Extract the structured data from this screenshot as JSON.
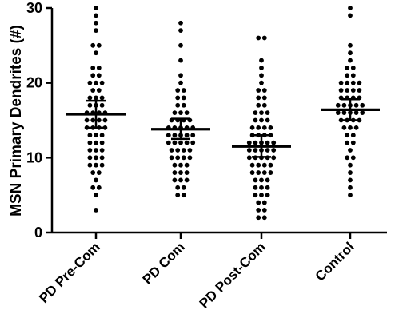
{
  "chart_data": {
    "type": "scatter",
    "ylabel": "MSN Primary Dendrites (#)",
    "xlabel": "",
    "ylim": [
      0,
      30
    ],
    "yticks": [
      0,
      10,
      20,
      30
    ],
    "grid": false,
    "categories": [
      "PD Pre-Com",
      "PD Com",
      "PD Post-Com",
      "Control"
    ],
    "groups": [
      {
        "category": "PD Pre-Com",
        "mean": 15.8,
        "error_low": 14.0,
        "error_high": 17.6,
        "values": [
          30,
          29,
          28,
          27,
          25,
          25,
          24,
          22,
          22,
          21,
          21,
          20,
          20,
          20,
          19,
          19,
          18,
          18,
          18,
          17,
          17,
          17,
          16,
          16,
          16,
          16,
          15,
          15,
          15,
          15,
          14,
          14,
          14,
          14,
          13,
          13,
          13,
          12,
          12,
          12,
          11,
          11,
          11,
          10,
          10,
          10,
          9,
          9,
          9,
          8,
          8,
          7,
          6,
          6,
          5,
          3
        ]
      },
      {
        "category": "PD Com",
        "mean": 13.8,
        "error_low": 12.5,
        "error_high": 15.2,
        "values": [
          28,
          27,
          25,
          23,
          21,
          20,
          19,
          19,
          18,
          18,
          17,
          17,
          16,
          16,
          16,
          15,
          15,
          15,
          15,
          14,
          14,
          14,
          14,
          14,
          13,
          13,
          13,
          13,
          13,
          12,
          12,
          12,
          12,
          12,
          11,
          11,
          11,
          11,
          10,
          10,
          10,
          10,
          9,
          9,
          9,
          8,
          8,
          8,
          7,
          7,
          7,
          6,
          6,
          5,
          5
        ]
      },
      {
        "category": "PD Post-Com",
        "mean": 11.5,
        "error_low": 10.1,
        "error_high": 13.0,
        "values": [
          26,
          26,
          23,
          22,
          21,
          20,
          19,
          19,
          18,
          18,
          17,
          17,
          16,
          16,
          16,
          15,
          15,
          15,
          14,
          14,
          14,
          14,
          13,
          13,
          13,
          13,
          12,
          12,
          12,
          12,
          12,
          11,
          11,
          11,
          11,
          11,
          10,
          10,
          10,
          10,
          10,
          9,
          9,
          9,
          9,
          8,
          8,
          8,
          8,
          7,
          7,
          7,
          6,
          6,
          6,
          5,
          5,
          5,
          4,
          4,
          3,
          3,
          2,
          2
        ]
      },
      {
        "category": "Control",
        "mean": 16.4,
        "error_low": 15.0,
        "error_high": 17.8,
        "values": [
          30,
          29,
          25,
          24,
          23,
          22,
          22,
          21,
          21,
          20,
          20,
          20,
          20,
          19,
          19,
          19,
          19,
          18,
          18,
          18,
          18,
          17,
          17,
          17,
          17,
          17,
          16,
          16,
          16,
          16,
          16,
          15,
          15,
          15,
          15,
          14,
          14,
          14,
          13,
          13,
          12,
          12,
          11,
          10,
          10,
          9,
          8,
          7,
          6,
          5
        ]
      }
    ]
  }
}
